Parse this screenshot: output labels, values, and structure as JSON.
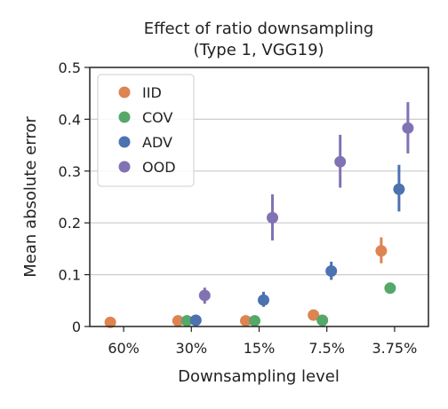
{
  "chart_data": {
    "type": "scatter",
    "title": "Effect of ratio downsampling",
    "subtitle": "(Type 1, VGG19)",
    "xlabel": "Downsampling level",
    "ylabel": "Mean absolute error",
    "categories": [
      "60%",
      "30%",
      "15%",
      "7.5%",
      "3.75%"
    ],
    "ylim": [
      0,
      0.5
    ],
    "yticks": [
      "0",
      "0.1",
      "0.2",
      "0.3",
      "0.4",
      "0.5"
    ],
    "grid": "horizontal",
    "legend_position": "top-left",
    "series": [
      {
        "name": "IID",
        "color": "#dd8452",
        "values": [
          0.008,
          0.011,
          0.011,
          0.022,
          0.146
        ],
        "err_low": [
          null,
          null,
          null,
          null,
          0.122
        ],
        "err_high": [
          null,
          null,
          null,
          null,
          0.172
        ]
      },
      {
        "name": "COV",
        "color": "#55a868",
        "values": [
          null,
          0.011,
          0.011,
          0.012,
          0.074
        ],
        "err_low": [
          null,
          null,
          null,
          null,
          null
        ],
        "err_high": [
          null,
          null,
          null,
          null,
          null
        ]
      },
      {
        "name": "ADV",
        "color": "#4c72b0",
        "values": [
          null,
          0.012,
          0.051,
          0.107,
          0.265
        ],
        "err_low": [
          null,
          null,
          0.038,
          0.09,
          0.222
        ],
        "err_high": [
          null,
          null,
          0.067,
          0.125,
          0.312
        ]
      },
      {
        "name": "OOD",
        "color": "#8172b3",
        "values": [
          null,
          0.06,
          0.21,
          0.318,
          0.383
        ],
        "err_low": [
          null,
          0.044,
          0.166,
          0.268,
          0.334
        ],
        "err_high": [
          null,
          0.075,
          0.255,
          0.37,
          0.433
        ]
      }
    ]
  }
}
